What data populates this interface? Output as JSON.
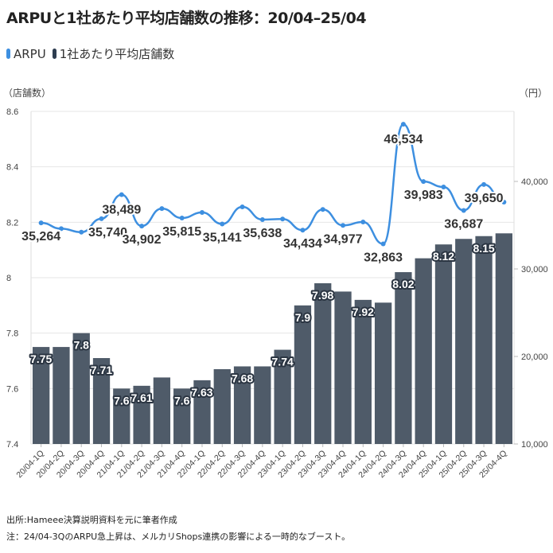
{
  "title": "ARPUと1社あたり平均店舗数の推移：20/04–25/04",
  "legend": [
    {
      "label": "ARPU",
      "color": "#3d8fe0"
    },
    {
      "label": "1社あたり平均店舗数",
      "color": "#2e3d50"
    }
  ],
  "left_unit": "（店舗数）",
  "right_unit": "（円）",
  "footnotes": {
    "source": "出所:Hameee決算説明資料を元に筆者作成",
    "note": "注：24/04-3QのARPU急上昇は、メルカリShops連携の影響による一時的なブースト。"
  },
  "chart_data": {
    "type": "bar+line",
    "title": "ARPUと1社あたり平均店舗数の推移：20/04–25/04",
    "categories": [
      "20/04-1Q",
      "20/04-2Q",
      "20/04-3Q",
      "20/04-4Q",
      "21/04-1Q",
      "21/04-2Q",
      "21/04-3Q",
      "21/04-4Q",
      "22/04-1Q",
      "22/04-2Q",
      "22/04-3Q",
      "22/04-4Q",
      "23/04-1Q",
      "23/04-2Q",
      "23/04-3Q",
      "23/04-4Q",
      "24/04-1Q",
      "24/04-2Q",
      "24/04-3Q",
      "24/04-4Q",
      "25/04-1Q",
      "25/04-2Q",
      "25/04-3Q",
      "25/04-4Q"
    ],
    "left_axis": {
      "label": "（店舗数）",
      "ylim": [
        7.4,
        8.6
      ],
      "ticks": [
        "7.4",
        "7.6",
        "7.8",
        "8",
        "8.2",
        "8.4",
        "8.6"
      ],
      "tick_values": [
        7.4,
        7.6,
        7.8,
        8.0,
        8.2,
        8.4,
        8.6
      ]
    },
    "right_axis": {
      "label": "（円）",
      "ylim": [
        10000,
        48000
      ],
      "ticks": [
        "10,000",
        "20,000",
        "30,000",
        "40,000"
      ],
      "tick_values": [
        10000,
        20000,
        30000,
        40000
      ]
    },
    "grid": true,
    "legend_position": "top-left",
    "series": [
      {
        "name": "1社あたり平均店舗数",
        "type": "bar",
        "axis": "left",
        "color": "#4f5b69",
        "values": [
          7.75,
          7.75,
          7.8,
          7.71,
          7.6,
          7.61,
          7.64,
          7.6,
          7.63,
          7.67,
          7.68,
          7.68,
          7.74,
          7.9,
          7.98,
          7.95,
          7.92,
          7.91,
          8.02,
          8.07,
          8.12,
          8.14,
          8.15,
          8.16
        ],
        "labels": [
          "7.75",
          null,
          "7.8",
          "7.71",
          "7.6",
          "7.61",
          null,
          "7.6",
          "7.63",
          null,
          "7.68",
          null,
          "7.74",
          "7.9",
          "7.98",
          null,
          "7.92",
          null,
          "8.02",
          null,
          "8.12",
          null,
          "8.15",
          null
        ]
      },
      {
        "name": "ARPU",
        "type": "line",
        "axis": "right",
        "color": "#3d8fe0",
        "values": [
          35264,
          34600,
          34200,
          35740,
          38489,
          34902,
          36900,
          35815,
          36450,
          35141,
          37090,
          35638,
          35700,
          34434,
          36800,
          34977,
          35360,
          32863,
          46534,
          39983,
          39360,
          36687,
          39650,
          37640
        ],
        "labels": [
          "35,264",
          null,
          null,
          "35,740",
          "38,489",
          "34,902",
          null,
          "35,815",
          null,
          "35,141",
          null,
          "35,638",
          null,
          "34,434",
          null,
          "34,977",
          null,
          "32,863",
          "46,534",
          "39,983",
          null,
          "36,687",
          "39,650",
          null
        ]
      }
    ]
  }
}
